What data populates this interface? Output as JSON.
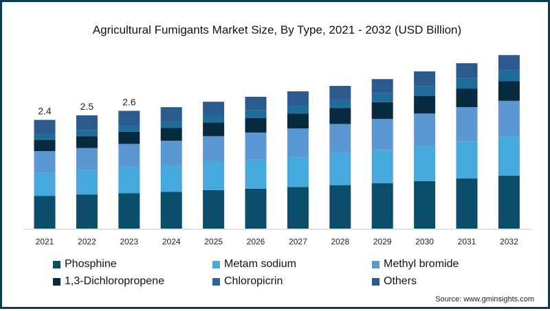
{
  "chart_data": {
    "type": "bar",
    "stacked": true,
    "title": "Agricultural Fumigants Market Size, By Type, 2021 - 2032 (USD Billion)",
    "xlabel": "",
    "ylabel": "",
    "ylim": [
      0,
      4
    ],
    "grid": false,
    "legend_position": "bottom",
    "categories": [
      "2021",
      "2022",
      "2023",
      "2024",
      "2025",
      "2026",
      "2027",
      "2028",
      "2029",
      "2030",
      "2031",
      "2032"
    ],
    "series": [
      {
        "name": "Phosphine",
        "color": "#0b4d6b",
        "values": [
          0.72,
          0.75,
          0.78,
          0.81,
          0.85,
          0.88,
          0.92,
          0.96,
          1.0,
          1.05,
          1.11,
          1.17
        ]
      },
      {
        "name": "Metam sodium",
        "color": "#46a9dd",
        "values": [
          0.52,
          0.54,
          0.57,
          0.59,
          0.62,
          0.64,
          0.67,
          0.7,
          0.73,
          0.77,
          0.81,
          0.85
        ]
      },
      {
        "name": "Methyl bromide",
        "color": "#5b97d2",
        "values": [
          0.47,
          0.49,
          0.52,
          0.54,
          0.57,
          0.6,
          0.62,
          0.65,
          0.69,
          0.72,
          0.76,
          0.8
        ]
      },
      {
        "name": "1,3-Dichloropropene",
        "color": "#062a3e",
        "values": [
          0.25,
          0.26,
          0.27,
          0.28,
          0.3,
          0.32,
          0.33,
          0.35,
          0.37,
          0.39,
          0.41,
          0.43
        ]
      },
      {
        "name": "Chloropicrin",
        "color": "#1f6b99",
        "values": [
          0.13,
          0.14,
          0.14,
          0.15,
          0.16,
          0.17,
          0.18,
          0.19,
          0.2,
          0.21,
          0.23,
          0.24
        ]
      },
      {
        "name": "Others",
        "color": "#2a5a8e",
        "values": [
          0.31,
          0.32,
          0.32,
          0.31,
          0.3,
          0.3,
          0.31,
          0.3,
          0.31,
          0.33,
          0.33,
          0.34
        ]
      }
    ],
    "data_labels": [
      {
        "category": "2021",
        "text": "2.4"
      },
      {
        "category": "2022",
        "text": "2.5"
      },
      {
        "category": "2023",
        "text": "2.6"
      }
    ]
  },
  "legend": {
    "items": [
      "Phosphine",
      "Metam sodium",
      "Methyl bromide",
      "1,3-Dichloropropene",
      "Chloropicrin",
      "Others"
    ]
  },
  "source": "Source: www.gminsights.com"
}
